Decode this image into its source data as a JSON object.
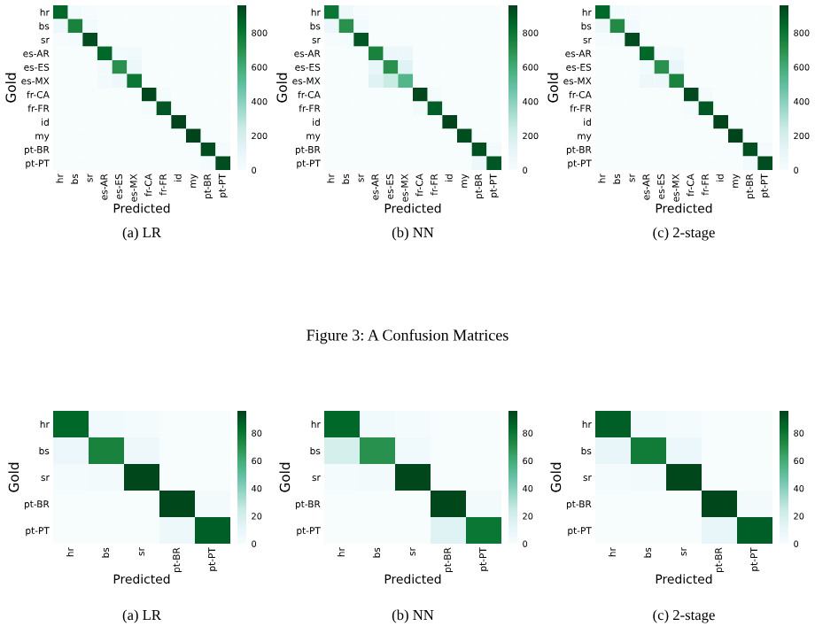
{
  "chart_data": [
    {
      "type": "heatmap",
      "title": "(a) LR",
      "xlabel": "Predicted",
      "ylabel": "Gold",
      "annotations": [
        "Figure 3: A Confusion Matrices"
      ],
      "categories": [
        "hr",
        "bs",
        "sr",
        "es-AR",
        "es-ES",
        "es-MX",
        "fr-CA",
        "fr-FR",
        "id",
        "my",
        "pt-BR",
        "pt-PT"
      ],
      "y_categories": [
        "hr",
        "bs",
        "sr",
        "es-AR",
        "es-ES",
        "es-MX",
        "fr-CA",
        "fr-FR",
        "id",
        "my",
        "pt-BR",
        "pt-PT"
      ],
      "cells": [
        [
          850,
          40,
          10,
          0,
          0,
          0,
          0,
          0,
          0,
          0,
          0,
          0
        ],
        [
          60,
          750,
          40,
          0,
          0,
          0,
          0,
          0,
          0,
          0,
          0,
          0
        ],
        [
          10,
          20,
          930,
          0,
          0,
          0,
          0,
          0,
          0,
          0,
          0,
          0
        ],
        [
          0,
          0,
          0,
          850,
          40,
          50,
          0,
          0,
          0,
          0,
          0,
          0
        ],
        [
          0,
          0,
          0,
          30,
          700,
          80,
          0,
          0,
          0,
          0,
          0,
          0
        ],
        [
          0,
          0,
          0,
          40,
          60,
          800,
          0,
          0,
          0,
          0,
          0,
          0
        ],
        [
          0,
          0,
          0,
          0,
          0,
          0,
          950,
          20,
          0,
          0,
          0,
          0
        ],
        [
          0,
          0,
          0,
          0,
          0,
          0,
          20,
          900,
          0,
          0,
          0,
          0
        ],
        [
          0,
          0,
          0,
          0,
          0,
          0,
          0,
          0,
          960,
          0,
          0,
          0
        ],
        [
          0,
          0,
          0,
          0,
          0,
          0,
          0,
          0,
          0,
          960,
          0,
          0
        ],
        [
          0,
          0,
          0,
          0,
          0,
          0,
          0,
          0,
          0,
          0,
          930,
          20
        ],
        [
          0,
          0,
          0,
          0,
          0,
          0,
          0,
          0,
          0,
          0,
          20,
          930
        ]
      ],
      "clim": [
        0,
        960
      ],
      "cticks": [
        0,
        200,
        400,
        600,
        800
      ]
    },
    {
      "type": "heatmap",
      "title": "(b) NN",
      "xlabel": "Predicted",
      "ylabel": "Gold",
      "categories": [
        "hr",
        "bs",
        "sr",
        "es-AR",
        "es-ES",
        "es-MX",
        "fr-CA",
        "fr-FR",
        "id",
        "my",
        "pt-BR",
        "pt-PT"
      ],
      "y_categories": [
        "hr",
        "bs",
        "sr",
        "es-AR",
        "es-ES",
        "es-MX",
        "fr-CA",
        "fr-FR",
        "id",
        "my",
        "pt-BR",
        "pt-PT"
      ],
      "cells": [
        [
          800,
          60,
          10,
          0,
          0,
          0,
          0,
          0,
          0,
          0,
          0,
          0
        ],
        [
          80,
          700,
          40,
          0,
          0,
          0,
          0,
          0,
          0,
          0,
          0,
          0
        ],
        [
          10,
          20,
          900,
          0,
          0,
          0,
          0,
          0,
          0,
          0,
          0,
          0
        ],
        [
          0,
          0,
          0,
          750,
          80,
          80,
          0,
          0,
          0,
          0,
          0,
          0
        ],
        [
          0,
          0,
          0,
          100,
          700,
          150,
          0,
          0,
          0,
          0,
          0,
          0
        ],
        [
          0,
          0,
          0,
          150,
          250,
          550,
          0,
          0,
          0,
          0,
          0,
          0
        ],
        [
          0,
          0,
          0,
          0,
          0,
          0,
          950,
          20,
          0,
          0,
          0,
          0
        ],
        [
          0,
          0,
          0,
          0,
          0,
          0,
          30,
          880,
          0,
          0,
          0,
          0
        ],
        [
          0,
          0,
          0,
          0,
          0,
          0,
          0,
          0,
          960,
          0,
          0,
          0
        ],
        [
          0,
          0,
          0,
          0,
          0,
          0,
          0,
          0,
          0,
          930,
          0,
          0
        ],
        [
          0,
          0,
          0,
          0,
          0,
          0,
          0,
          0,
          0,
          0,
          920,
          30
        ],
        [
          0,
          0,
          0,
          0,
          0,
          0,
          0,
          0,
          0,
          0,
          60,
          900
        ]
      ],
      "clim": [
        0,
        960
      ],
      "cticks": [
        0,
        200,
        400,
        600,
        800
      ]
    },
    {
      "type": "heatmap",
      "title": "(c) 2-stage",
      "xlabel": "Predicted",
      "ylabel": "Gold",
      "categories": [
        "hr",
        "bs",
        "sr",
        "es-AR",
        "es-ES",
        "es-MX",
        "fr-CA",
        "fr-FR",
        "id",
        "my",
        "pt-BR",
        "pt-PT"
      ],
      "y_categories": [
        "hr",
        "bs",
        "sr",
        "es-AR",
        "es-ES",
        "es-MX",
        "fr-CA",
        "fr-FR",
        "id",
        "my",
        "pt-BR",
        "pt-PT"
      ],
      "cells": [
        [
          850,
          40,
          10,
          0,
          0,
          0,
          0,
          0,
          0,
          0,
          0,
          0
        ],
        [
          60,
          720,
          40,
          0,
          0,
          0,
          0,
          0,
          0,
          0,
          0,
          0
        ],
        [
          10,
          20,
          930,
          0,
          0,
          0,
          0,
          0,
          0,
          0,
          0,
          0
        ],
        [
          0,
          0,
          0,
          850,
          30,
          50,
          0,
          0,
          0,
          0,
          0,
          0
        ],
        [
          0,
          0,
          0,
          40,
          700,
          100,
          0,
          0,
          0,
          0,
          0,
          0
        ],
        [
          0,
          0,
          0,
          60,
          60,
          750,
          0,
          0,
          0,
          0,
          0,
          0
        ],
        [
          0,
          0,
          0,
          0,
          0,
          0,
          940,
          20,
          0,
          0,
          0,
          0
        ],
        [
          0,
          0,
          0,
          0,
          0,
          0,
          20,
          900,
          0,
          0,
          0,
          0
        ],
        [
          0,
          0,
          0,
          0,
          0,
          0,
          0,
          0,
          960,
          0,
          0,
          0
        ],
        [
          0,
          0,
          0,
          0,
          0,
          0,
          0,
          0,
          0,
          960,
          0,
          0
        ],
        [
          0,
          0,
          0,
          0,
          0,
          0,
          0,
          0,
          0,
          0,
          920,
          20
        ],
        [
          0,
          0,
          0,
          0,
          0,
          0,
          0,
          0,
          0,
          0,
          40,
          930
        ]
      ],
      "clim": [
        0,
        960
      ],
      "cticks": [
        0,
        200,
        400,
        600,
        800
      ]
    },
    {
      "type": "heatmap",
      "title": "(a) LR",
      "xlabel": "Predicted",
      "ylabel": "Gold",
      "categories": [
        "hr",
        "bs",
        "sr",
        "pt-BR",
        "pt-PT"
      ],
      "y_categories": [
        "hr",
        "bs",
        "sr",
        "pt-BR",
        "pt-PT"
      ],
      "cells": [
        [
          85,
          5,
          2,
          0,
          0
        ],
        [
          8,
          75,
          6,
          0,
          0
        ],
        [
          2,
          3,
          95,
          0,
          0
        ],
        [
          0,
          0,
          0,
          95,
          3
        ],
        [
          0,
          0,
          0,
          7,
          88
        ]
      ],
      "clim": [
        0,
        96
      ],
      "cticks": [
        0,
        20,
        40,
        60,
        80
      ]
    },
    {
      "type": "heatmap",
      "title": "(b) NN",
      "xlabel": "Predicted",
      "ylabel": "Gold",
      "categories": [
        "hr",
        "bs",
        "sr",
        "pt-BR",
        "pt-PT"
      ],
      "y_categories": [
        "hr",
        "bs",
        "sr",
        "pt-BR",
        "pt-PT"
      ],
      "cells": [
        [
          85,
          5,
          2,
          0,
          0
        ],
        [
          20,
          70,
          5,
          0,
          0
        ],
        [
          2,
          3,
          95,
          0,
          0
        ],
        [
          0,
          0,
          0,
          95,
          3
        ],
        [
          0,
          0,
          0,
          15,
          80
        ]
      ],
      "clim": [
        0,
        96
      ],
      "cticks": [
        0,
        20,
        40,
        60,
        80
      ]
    },
    {
      "type": "heatmap",
      "title": "(c) 2-stage",
      "xlabel": "Predicted",
      "ylabel": "Gold",
      "categories": [
        "hr",
        "bs",
        "sr",
        "pt-BR",
        "pt-PT"
      ],
      "y_categories": [
        "hr",
        "bs",
        "sr",
        "pt-BR",
        "pt-PT"
      ],
      "cells": [
        [
          88,
          5,
          2,
          0,
          0
        ],
        [
          10,
          78,
          8,
          0,
          0
        ],
        [
          2,
          3,
          95,
          0,
          0
        ],
        [
          0,
          0,
          0,
          95,
          3
        ],
        [
          0,
          0,
          0,
          10,
          88
        ]
      ],
      "clim": [
        0,
        96
      ],
      "cticks": [
        0,
        20,
        40,
        60,
        80
      ]
    }
  ]
}
